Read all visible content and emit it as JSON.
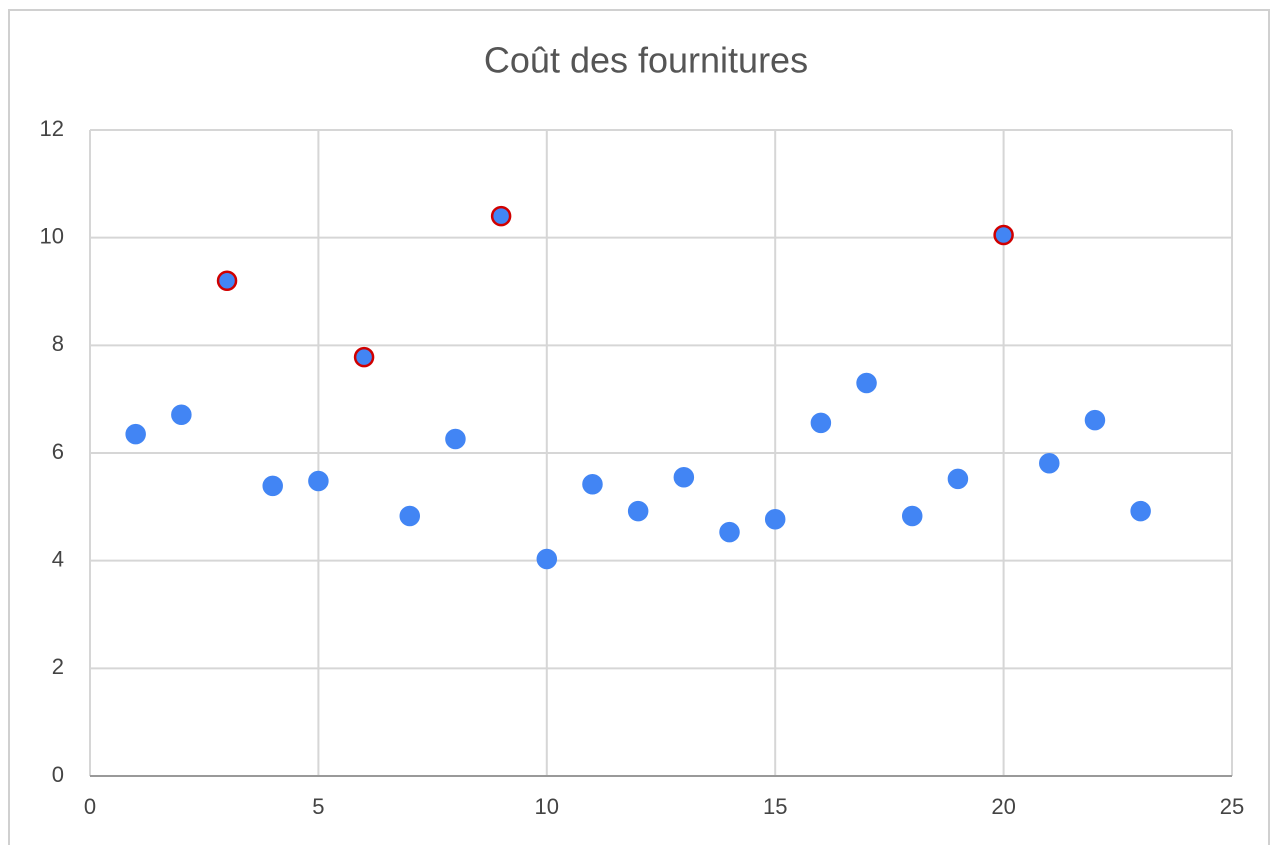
{
  "chart_data": {
    "type": "scatter",
    "title": "Coût des fournitures",
    "x": [
      1,
      2,
      3,
      4,
      5,
      6,
      7,
      8,
      9,
      10,
      11,
      12,
      13,
      14,
      15,
      16,
      17,
      18,
      19,
      20,
      21,
      22,
      23
    ],
    "series": [
      {
        "color": "#4285f4",
        "values": [
          6.35,
          6.71,
          9.2,
          5.39,
          5.48,
          7.78,
          4.83,
          6.26,
          10.4,
          4.03,
          5.42,
          4.92,
          5.55,
          4.53,
          4.77,
          6.56,
          7.3,
          4.83,
          5.52,
          10.05,
          5.81,
          6.61,
          4.92
        ],
        "edge_colors": [
          "#4285f4",
          "#4285f4",
          "#d00000",
          "#4285f4",
          "#4285f4",
          "#d00000",
          "#4285f4",
          "#4285f4",
          "#d00000",
          "#4285f4",
          "#4285f4",
          "#4285f4",
          "#4285f4",
          "#4285f4",
          "#4285f4",
          "#4285f4",
          "#4285f4",
          "#4285f4",
          "#4285f4",
          "#d00000",
          "#4285f4",
          "#4285f4",
          "#4285f4"
        ]
      }
    ],
    "xlim": [
      0,
      25
    ],
    "xticks": [
      0,
      5,
      10,
      15,
      20,
      25
    ],
    "ylim": [
      0,
      12
    ],
    "yticks": [
      0,
      2,
      4,
      6,
      8,
      10,
      12
    ],
    "grid": true
  }
}
